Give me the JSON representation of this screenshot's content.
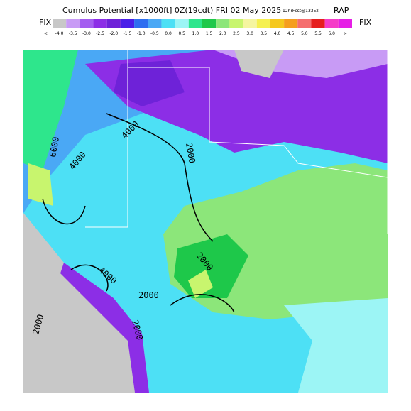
{
  "header": {
    "title": "Cumulus Potential [x1000ft] 0Z(19cdt) FRI 02 May 2025",
    "forecast": "12hrFcst@1335z",
    "model": "RAP",
    "fix_left": "FIX",
    "fix_right": "FIX"
  },
  "colorbar": {
    "labels": [
      "<",
      "-4.0",
      "-3.5",
      "-3.0",
      "-2.5",
      "-2.0",
      "-1.5",
      "-1.0",
      "-0.5",
      "0.0",
      "0.5",
      "1.0",
      "1.5",
      "2.0",
      "2.5",
      "3.0",
      "3.5",
      "4.0",
      "4.5",
      "5.0",
      "5.5",
      "6.0",
      ">"
    ],
    "colors": [
      "#c8c8c8",
      "#c89bf5",
      "#a45ef0",
      "#8c2ee6",
      "#6e22d8",
      "#4a1ee8",
      "#2e6ef0",
      "#4aa8f5",
      "#4de0f5",
      "#9cf5f5",
      "#2ee68c",
      "#1ec84a",
      "#8ce67a",
      "#c8f56e",
      "#f5f5a0",
      "#f5f050",
      "#f5c81e",
      "#f59e1e",
      "#f56e6e",
      "#e61e1e",
      "#f53cc8",
      "#e61ee6"
    ]
  },
  "contour_labels": [
    "6000",
    "4000",
    "4000",
    "2000",
    "2000",
    "4000",
    "2000",
    "2000",
    "2000"
  ]
}
